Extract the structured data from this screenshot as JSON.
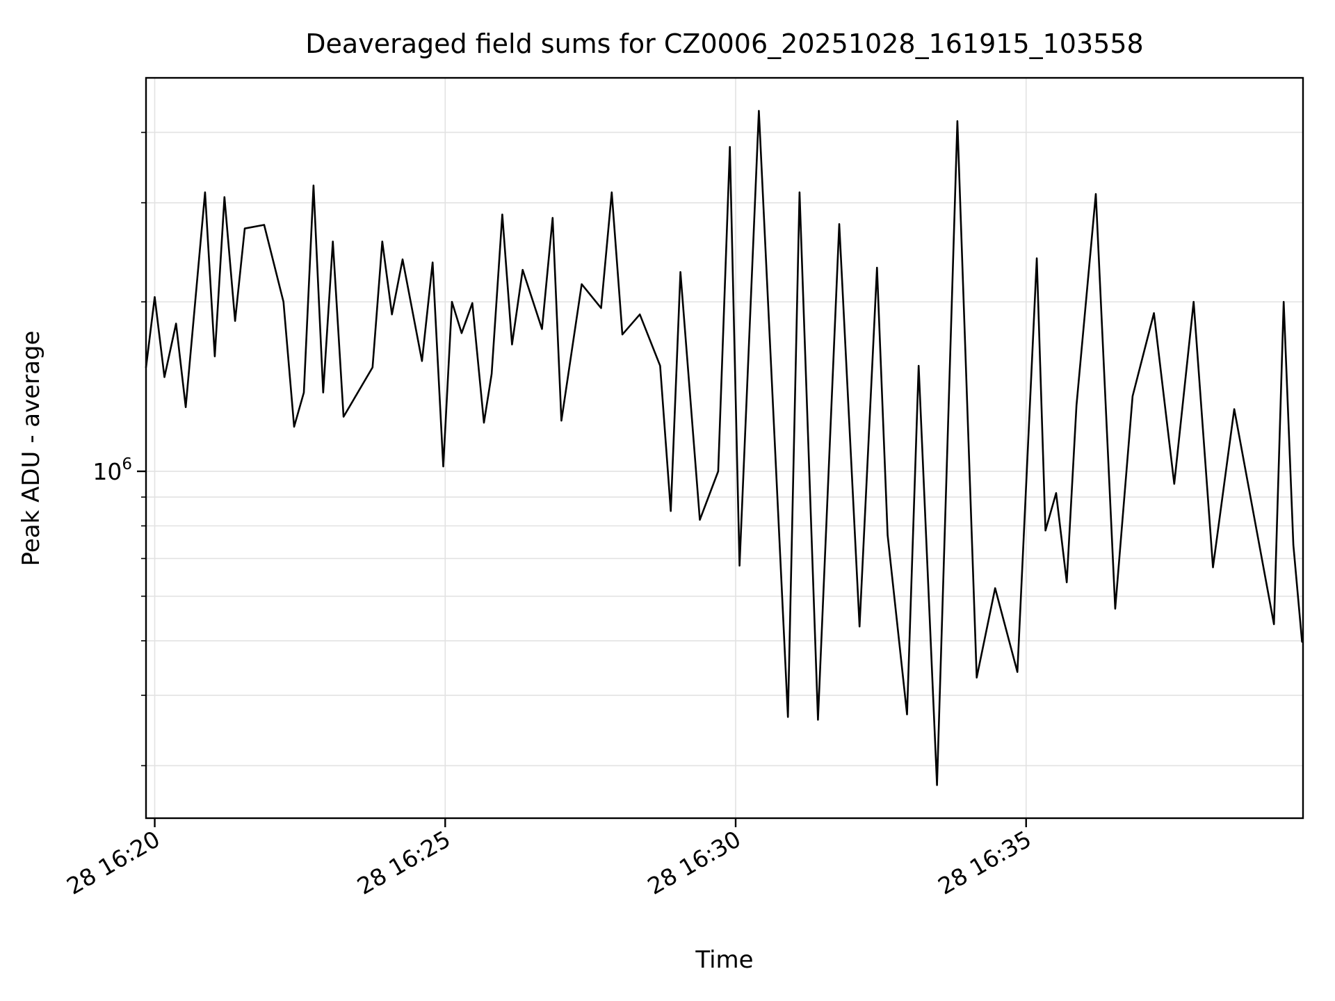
{
  "chart_data": {
    "type": "line",
    "title": "Deaveraged field sums for CZ0006_20251028_161915_103558",
    "xlabel": "Time",
    "ylabel": "Peak ADU - average",
    "yscale": "log",
    "grid": true,
    "legend": "none",
    "line_color": "#000000",
    "grid_color": "#e2e2e2",
    "background_color": "#ffffff",
    "xlim_time": [
      "16:19:51",
      "16:39:46"
    ],
    "ylim": [
      242000,
      5000000
    ],
    "x_ticks": [
      {
        "label": "28 16:20",
        "time": "16:20:00"
      },
      {
        "label": "28 16:25",
        "time": "16:25:00"
      },
      {
        "label": "28 16:30",
        "time": "16:30:00"
      },
      {
        "label": "28 16:35",
        "time": "16:35:00"
      }
    ],
    "y_major_tick": {
      "value": 1000000,
      "label_base": "10",
      "label_exp": "6"
    },
    "y_minor_ticks": [
      300000,
      400000,
      500000,
      600000,
      700000,
      800000,
      900000,
      2000000,
      3000000,
      4000000
    ],
    "series": [
      {
        "name": "peak-adu-average",
        "color": "#000000",
        "points": [
          [
            "16:19:51",
            1530000
          ],
          [
            "16:20:00",
            2040000
          ],
          [
            "16:20:10",
            1470000
          ],
          [
            "16:20:22",
            1830000
          ],
          [
            "16:20:32",
            1300000
          ],
          [
            "16:20:52",
            3130000
          ],
          [
            "16:21:02",
            1600000
          ],
          [
            "16:21:12",
            3070000
          ],
          [
            "16:21:23",
            1850000
          ],
          [
            "16:21:33",
            2700000
          ],
          [
            "16:21:53",
            2740000
          ],
          [
            "16:22:13",
            2000000
          ],
          [
            "16:22:24",
            1200000
          ],
          [
            "16:22:34",
            1380000
          ],
          [
            "16:22:44",
            3220000
          ],
          [
            "16:22:54",
            1380000
          ],
          [
            "16:23:04",
            2560000
          ],
          [
            "16:23:15",
            1250000
          ],
          [
            "16:23:45",
            1530000
          ],
          [
            "16:23:55",
            2560000
          ],
          [
            "16:24:05",
            1900000
          ],
          [
            "16:24:16",
            2380000
          ],
          [
            "16:24:36",
            1570000
          ],
          [
            "16:24:47",
            2350000
          ],
          [
            "16:24:58",
            1020000
          ],
          [
            "16:25:07",
            2000000
          ],
          [
            "16:25:17",
            1760000
          ],
          [
            "16:25:28",
            1990000
          ],
          [
            "16:25:40",
            1220000
          ],
          [
            "16:25:48",
            1490000
          ],
          [
            "16:25:59",
            2860000
          ],
          [
            "16:26:09",
            1680000
          ],
          [
            "16:26:20",
            2280000
          ],
          [
            "16:26:40",
            1790000
          ],
          [
            "16:26:51",
            2820000
          ],
          [
            "16:27:00",
            1230000
          ],
          [
            "16:27:21",
            2150000
          ],
          [
            "16:27:41",
            1950000
          ],
          [
            "16:27:52",
            3130000
          ],
          [
            "16:28:03",
            1750000
          ],
          [
            "16:28:21",
            1900000
          ],
          [
            "16:28:42",
            1540000
          ],
          [
            "16:28:53",
            850000
          ],
          [
            "16:29:03",
            2260000
          ],
          [
            "16:29:23",
            820000
          ],
          [
            "16:29:42",
            1000000
          ],
          [
            "16:29:54",
            3770000
          ],
          [
            "16:30:04",
            680000
          ],
          [
            "16:30:24",
            4370000
          ],
          [
            "16:30:54",
            366000
          ],
          [
            "16:31:06",
            3130000
          ],
          [
            "16:31:25",
            362000
          ],
          [
            "16:31:47",
            2750000
          ],
          [
            "16:32:08",
            530000
          ],
          [
            "16:32:26",
            2300000
          ],
          [
            "16:32:37",
            770000
          ],
          [
            "16:32:57",
            370000
          ],
          [
            "16:33:09",
            1540000
          ],
          [
            "16:33:28",
            277000
          ],
          [
            "16:33:49",
            4190000
          ],
          [
            "16:34:09",
            430000
          ],
          [
            "16:34:28",
            620000
          ],
          [
            "16:34:51",
            440000
          ],
          [
            "16:35:11",
            2390000
          ],
          [
            "16:35:20",
            785000
          ],
          [
            "16:35:31",
            915000
          ],
          [
            "16:35:42",
            635000
          ],
          [
            "16:35:52",
            1310000
          ],
          [
            "16:36:12",
            3110000
          ],
          [
            "16:36:32",
            570000
          ],
          [
            "16:36:50",
            1360000
          ],
          [
            "16:37:12",
            1910000
          ],
          [
            "16:37:33",
            950000
          ],
          [
            "16:37:53",
            2000000
          ],
          [
            "16:38:13",
            675000
          ],
          [
            "16:38:35",
            1290000
          ],
          [
            "16:39:16",
            535000
          ],
          [
            "16:39:26",
            2000000
          ],
          [
            "16:39:36",
            740000
          ],
          [
            "16:39:45",
            498000
          ]
        ]
      }
    ]
  }
}
